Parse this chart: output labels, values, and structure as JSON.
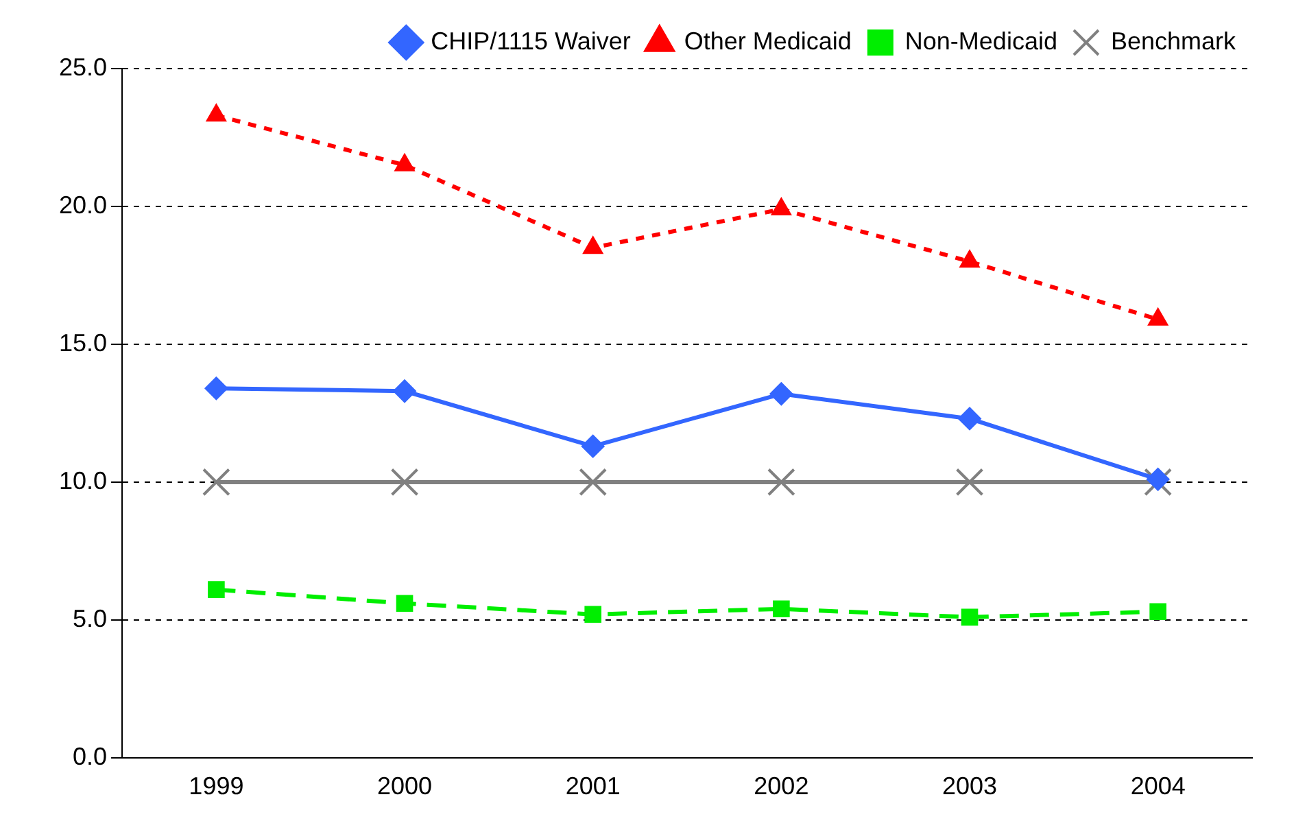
{
  "chart_data": {
    "type": "line",
    "categories": [
      "1999",
      "2000",
      "2001",
      "2002",
      "2003",
      "2004"
    ],
    "series": [
      {
        "name": "CHIP/1115 Waiver",
        "color": "#3366ff",
        "values": [
          13.4,
          13.3,
          11.3,
          13.2,
          12.3,
          10.1
        ],
        "marker": "diamond",
        "line_style": "solid"
      },
      {
        "name": "Other Medicaid",
        "color": "#ff0000",
        "values": [
          23.3,
          21.5,
          18.5,
          19.9,
          18.0,
          15.9
        ],
        "marker": "triangle",
        "line_style": "dotted"
      },
      {
        "name": "Non-Medicaid",
        "color": "#00ee00",
        "values": [
          6.1,
          5.6,
          5.2,
          5.4,
          5.1,
          5.3
        ],
        "marker": "square",
        "line_style": "dashed"
      },
      {
        "name": "Benchmark",
        "color": "#808080",
        "values": [
          10,
          10,
          10,
          10,
          10,
          10
        ],
        "marker": "cross",
        "line_style": "solid"
      }
    ],
    "ylim": [
      0,
      25
    ],
    "yticks": [
      {
        "value": 0,
        "label": "0.0"
      },
      {
        "value": 5,
        "label": "5.0"
      },
      {
        "value": 10,
        "label": "10.0"
      },
      {
        "value": 15,
        "label": "15.0"
      },
      {
        "value": 20,
        "label": "20.0"
      },
      {
        "value": 25,
        "label": "25.0"
      }
    ],
    "grid": "y",
    "legend": "top right"
  }
}
